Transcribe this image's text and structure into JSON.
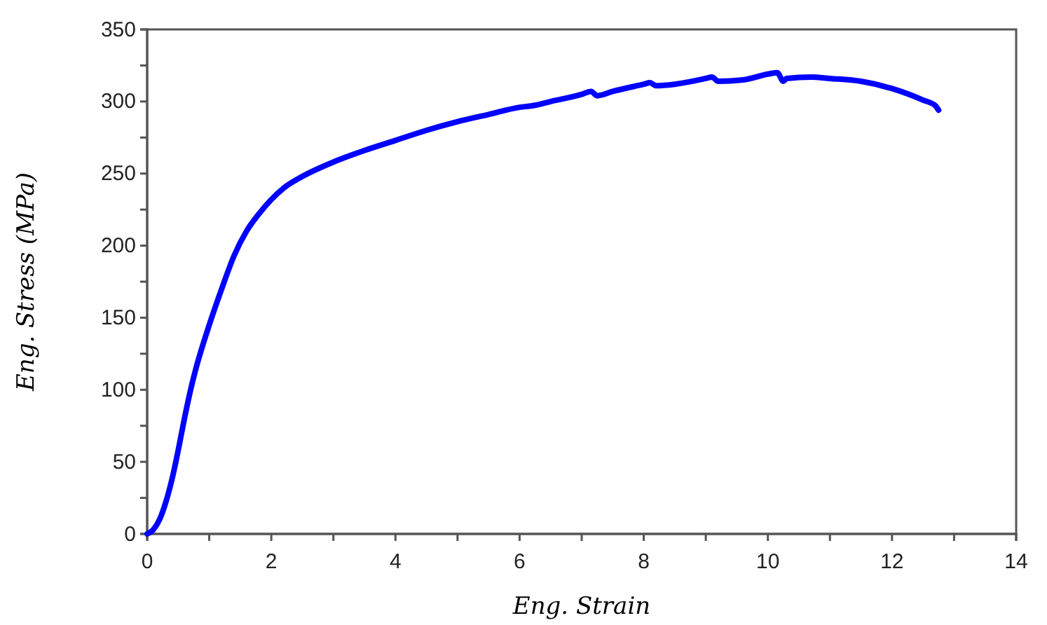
{
  "chart_data": {
    "type": "line",
    "xlabel": "Eng. Strain",
    "ylabel": "Eng. Stress (MPa)",
    "xlim": [
      0,
      14
    ],
    "ylim": [
      0,
      350
    ],
    "xticks": [
      0,
      {
        "value": 1,
        "label": null
      },
      2,
      {
        "value": 3,
        "label": null
      },
      4,
      {
        "value": 5,
        "label": null
      },
      6,
      {
        "value": 7,
        "label": null
      },
      8,
      {
        "value": 9,
        "label": null
      },
      10,
      {
        "value": 11,
        "label": null
      },
      12,
      {
        "value": 13,
        "label": null
      },
      14
    ],
    "yticks": [
      0,
      {
        "value": 25,
        "label": null
      },
      50,
      {
        "value": 75,
        "label": null
      },
      100,
      {
        "value": 125,
        "label": null
      },
      150,
      {
        "value": 175,
        "label": null
      },
      200,
      {
        "value": 225,
        "label": null
      },
      250,
      {
        "value": 275,
        "label": null
      },
      300,
      {
        "value": 325,
        "label": null
      },
      350
    ],
    "grid": false,
    "marker": "none",
    "line_style": "solid",
    "series": [
      {
        "color": "#0000ff",
        "x": [
          0,
          0.1,
          0.2,
          0.3,
          0.4,
          0.5,
          0.6,
          0.7,
          0.8,
          1.0,
          1.2,
          1.4,
          1.6,
          1.8,
          2.0,
          2.2,
          2.5,
          3,
          3.5,
          4,
          4.5,
          5,
          5.5,
          6,
          6.2,
          6.5,
          7,
          7.15,
          7.25,
          7.5,
          8,
          8.1,
          8.2,
          8.5,
          9,
          9.1,
          9.2,
          9.6,
          10,
          10.15,
          10.25,
          10.3,
          10.7,
          11,
          11.5,
          12,
          12.5,
          12.7,
          12.75
        ],
        "values": [
          0,
          3,
          10,
          22,
          38,
          58,
          80,
          100,
          117,
          145,
          170,
          193,
          210,
          222,
          232,
          240,
          248,
          258,
          266,
          273,
          280,
          286,
          291,
          296,
          297,
          300,
          305,
          307,
          304,
          307,
          312,
          313,
          311,
          312,
          316,
          317,
          314,
          315,
          319,
          320,
          314,
          316,
          317,
          316,
          314,
          309,
          301,
          297,
          294
        ]
      }
    ]
  }
}
